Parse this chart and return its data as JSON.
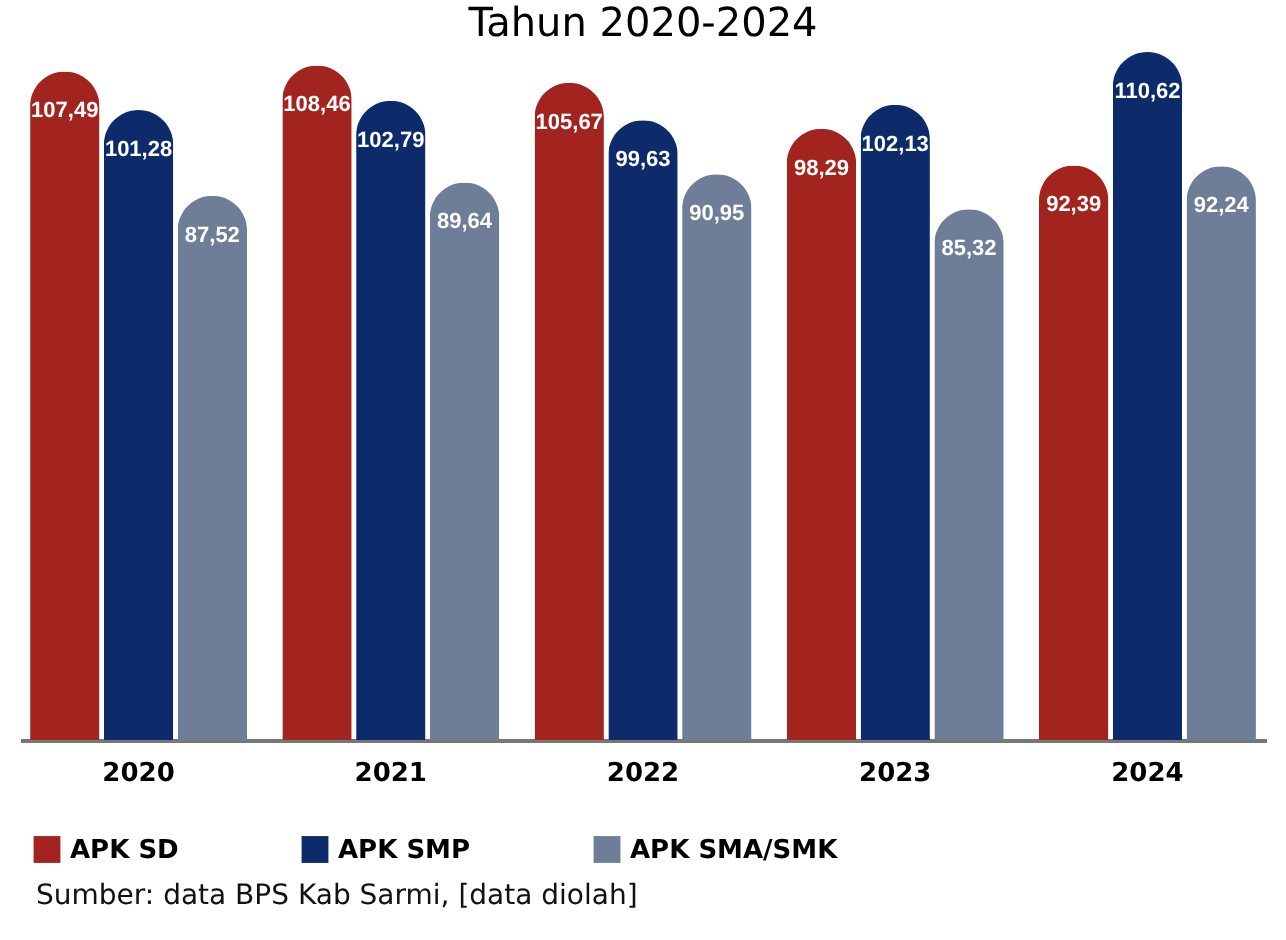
{
  "chart_data": {
    "type": "bar",
    "title": "Tahun 2020-2024",
    "categories": [
      "2020",
      "2021",
      "2022",
      "2023",
      "2024"
    ],
    "series": [
      {
        "name": "APK SD",
        "color": "#a3231f",
        "values": [
          107.49,
          108.46,
          105.67,
          98.29,
          92.39
        ],
        "value_labels": [
          "107,49",
          "108,46",
          "105,67",
          "98,29",
          "92,39"
        ]
      },
      {
        "name": "APK SMP",
        "color": "#0d2b6b",
        "values": [
          101.28,
          102.79,
          99.63,
          102.13,
          110.62
        ],
        "value_labels": [
          "101,28",
          "102,79",
          "99,63",
          "102,13",
          "110,62"
        ]
      },
      {
        "name": "APK SMA/SMK",
        "color": "#6e7d98",
        "values": [
          87.52,
          89.64,
          90.95,
          85.32,
          92.24
        ],
        "value_labels": [
          "87,52",
          "89,64",
          "90,95",
          "85,32",
          "92,24"
        ]
      }
    ],
    "legend": "bottom",
    "annotations": [
      "Sumber: data BPS Kab Sarmi,  [data diolah]"
    ]
  }
}
